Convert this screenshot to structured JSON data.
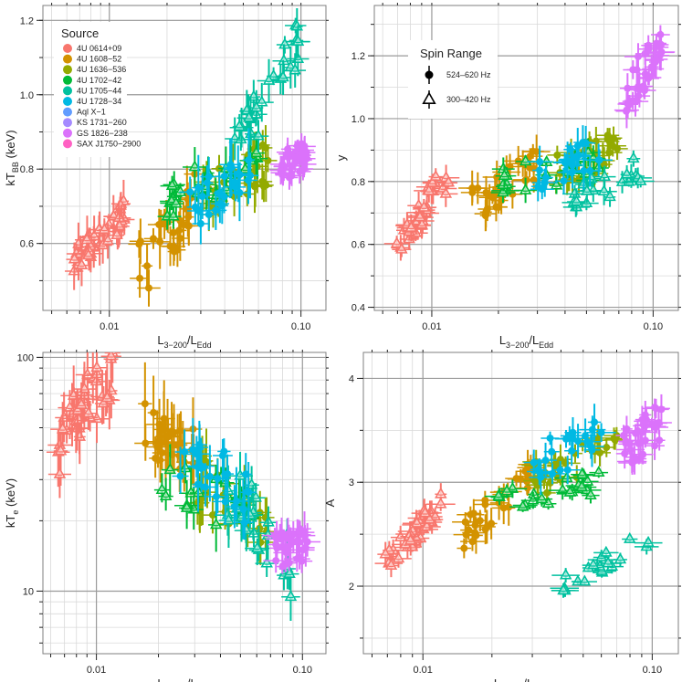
{
  "sources": [
    {
      "name": "4U 0614+09",
      "color": "#F8766D"
    },
    {
      "name": "4U 1608−52",
      "color": "#D39200"
    },
    {
      "name": "4U 1636−536",
      "color": "#93AA00"
    },
    {
      "name": "4U 1702−42",
      "color": "#00BA38"
    },
    {
      "name": "4U 1705−44",
      "color": "#00C19F"
    },
    {
      "name": "4U 1728−34",
      "color": "#00B9E3"
    },
    {
      "name": "Aql X−1",
      "color": "#619CFF"
    },
    {
      "name": "KS 1731−260",
      "color": "#A58AFF"
    },
    {
      "name": "GS 1826−238",
      "color": "#DB72FB"
    },
    {
      "name": "SAX J1750−2900",
      "color": "#FF61C3"
    }
  ],
  "legend_source_title": "Source",
  "legend_spin_title": "Spin Range",
  "spin_ranges": [
    {
      "label": "524–620 Hz",
      "marker": "circle"
    },
    {
      "label": "300–420 Hz",
      "marker": "triangle"
    }
  ],
  "chart_data": [
    {
      "type": "scatter",
      "id": "kTbb",
      "xlabel_main": "L",
      "xlabel_sub1": "3−200",
      "xlabel_mid": "/L",
      "xlabel_sub2": "Edd",
      "ylabel_main": "kT",
      "ylabel_sub": "BB",
      "ylabel_suffix": " (keV)",
      "xscale": "log",
      "xlim": [
        0.0045,
        0.135
      ],
      "ylim": [
        0.42,
        1.24
      ],
      "xticks": [
        0.01,
        0.1
      ],
      "xticklabels": [
        "0.01",
        "0.10"
      ],
      "yticks": [
        0.6,
        0.8,
        1.0,
        1.2
      ],
      "yticklabels": [
        "0.6",
        "0.8",
        "1.0",
        "1.2"
      ],
      "series": [
        {
          "source": 0,
          "marker": "triangle",
          "x_range": [
            0.0065,
            0.012
          ],
          "y_start": 0.56,
          "y_end": 0.68,
          "spread": 0.04,
          "err": 0.04,
          "n": 42
        },
        {
          "source": 1,
          "marker": "circle",
          "x_range": [
            0.014,
            0.028
          ],
          "y_start": 0.52,
          "y_end": 0.72,
          "spread": 0.08,
          "err": 0.05,
          "n": 30
        },
        {
          "source": 2,
          "marker": "circle",
          "x_range": [
            0.03,
            0.07
          ],
          "y_start": 0.72,
          "y_end": 0.82,
          "spread": 0.06,
          "err": 0.05,
          "n": 32
        },
        {
          "source": 3,
          "marker": "triangle",
          "x_range": [
            0.02,
            0.06
          ],
          "y_start": 0.72,
          "y_end": 0.82,
          "spread": 0.06,
          "err": 0.04,
          "n": 24
        },
        {
          "source": 4,
          "marker": "triangle",
          "x_range": [
            0.045,
            0.1
          ],
          "y_start": 0.85,
          "y_end": 1.15,
          "spread": 0.07,
          "err": 0.04,
          "n": 28
        },
        {
          "source": 5,
          "marker": "circle",
          "x_range": [
            0.025,
            0.055
          ],
          "y_start": 0.68,
          "y_end": 0.82,
          "spread": 0.06,
          "err": 0.06,
          "n": 26
        },
        {
          "source": 8,
          "marker": "circle",
          "x_range": [
            0.075,
            0.108
          ],
          "y_start": 0.8,
          "y_end": 0.84,
          "spread": 0.04,
          "err": 0.03,
          "n": 36
        }
      ]
    },
    {
      "type": "scatter",
      "id": "y",
      "xlabel_main": "L",
      "xlabel_sub1": "3−200",
      "xlabel_mid": "/L",
      "xlabel_sub2": "Edd",
      "ylabel_main": "y",
      "ylabel_sub": "",
      "ylabel_suffix": "",
      "xscale": "log",
      "xlim": [
        0.0055,
        0.13
      ],
      "ylim": [
        0.39,
        1.36
      ],
      "xticks": [
        0.01,
        0.1
      ],
      "xticklabels": [
        "0.01",
        "0.10"
      ],
      "yticks": [
        0.4,
        0.6,
        0.8,
        1.0,
        1.2
      ],
      "yticklabels": [
        "0.4",
        "0.6",
        "0.8",
        "1.0",
        "1.2"
      ],
      "series": [
        {
          "source": 0,
          "marker": "triangle",
          "x_range": [
            0.0068,
            0.012
          ],
          "y_start": 0.6,
          "y_end": 0.82,
          "spread": 0.05,
          "err": 0.03,
          "n": 40
        },
        {
          "source": 1,
          "marker": "circle",
          "x_range": [
            0.015,
            0.03
          ],
          "y_start": 0.72,
          "y_end": 0.85,
          "spread": 0.06,
          "err": 0.04,
          "n": 30
        },
        {
          "source": 2,
          "marker": "circle",
          "x_range": [
            0.035,
            0.07
          ],
          "y_start": 0.84,
          "y_end": 0.9,
          "spread": 0.06,
          "err": 0.04,
          "n": 28
        },
        {
          "source": 3,
          "marker": "triangle",
          "x_range": [
            0.02,
            0.06
          ],
          "y_start": 0.8,
          "y_end": 0.86,
          "spread": 0.05,
          "err": 0.03,
          "n": 22
        },
        {
          "source": 4,
          "marker": "triangle",
          "x_range": [
            0.04,
            0.09
          ],
          "y_start": 0.74,
          "y_end": 0.84,
          "spread": 0.05,
          "err": 0.03,
          "n": 22
        },
        {
          "source": 5,
          "marker": "circle",
          "x_range": [
            0.03,
            0.06
          ],
          "y_start": 0.82,
          "y_end": 0.9,
          "spread": 0.05,
          "err": 0.04,
          "n": 24
        },
        {
          "source": 8,
          "marker": "circle",
          "x_range": [
            0.075,
            0.11
          ],
          "y_start": 1.08,
          "y_end": 1.22,
          "spread": 0.07,
          "err": 0.04,
          "n": 36
        }
      ]
    },
    {
      "type": "scatter",
      "id": "kTe",
      "xlabel_main": "L",
      "xlabel_sub1": "3−200",
      "xlabel_mid": "/L",
      "xlabel_sub2": "Edd",
      "ylabel_main": "kT",
      "ylabel_sub": "e",
      "ylabel_suffix": " (keV)",
      "xscale": "log",
      "xlim": [
        0.0055,
        0.13
      ],
      "yscale": "log",
      "ylim": [
        5.4,
        105
      ],
      "xticks": [
        0.01,
        0.1
      ],
      "xticklabels": [
        "0.01",
        "0.10"
      ],
      "yticks": [
        10,
        100
      ],
      "yticklabels": [
        "10",
        "100"
      ],
      "series": [
        {
          "source": 0,
          "marker": "triangle",
          "x_range": [
            0.0065,
            0.012
          ],
          "y_start": 40,
          "y_end": 85,
          "spread": 0.12,
          "err": 0.1,
          "n": 40
        },
        {
          "source": 1,
          "marker": "circle",
          "x_range": [
            0.017,
            0.03
          ],
          "y_start": 50,
          "y_end": 40,
          "spread": 0.12,
          "err": 0.12,
          "n": 30
        },
        {
          "source": 2,
          "marker": "circle",
          "x_range": [
            0.03,
            0.07
          ],
          "y_start": 30,
          "y_end": 16,
          "spread": 0.12,
          "err": 0.1,
          "n": 28
        },
        {
          "source": 3,
          "marker": "triangle",
          "x_range": [
            0.02,
            0.06
          ],
          "y_start": 28,
          "y_end": 22,
          "spread": 0.12,
          "err": 0.08,
          "n": 22
        },
        {
          "source": 4,
          "marker": "triangle",
          "x_range": [
            0.04,
            0.09
          ],
          "y_start": 30,
          "y_end": 12,
          "spread": 0.15,
          "err": 0.08,
          "n": 22
        },
        {
          "source": 5,
          "marker": "circle",
          "x_range": [
            0.025,
            0.055
          ],
          "y_start": 40,
          "y_end": 25,
          "spread": 0.12,
          "err": 0.1,
          "n": 24
        },
        {
          "source": 8,
          "marker": "circle",
          "x_range": [
            0.072,
            0.11
          ],
          "y_start": 15,
          "y_end": 16,
          "spread": 0.08,
          "err": 0.06,
          "n": 34
        }
      ]
    },
    {
      "type": "scatter",
      "id": "A",
      "xlabel_main": "L",
      "xlabel_sub1": "3−200",
      "xlabel_mid": "/L",
      "xlabel_sub2": "Edd",
      "ylabel_main": "A",
      "ylabel_sub": "",
      "ylabel_suffix": "",
      "xscale": "log",
      "xlim": [
        0.0055,
        0.13
      ],
      "ylim": [
        1.35,
        4.25
      ],
      "xticks": [
        0.01,
        0.1
      ],
      "xticklabels": [
        "0.01",
        "0.10"
      ],
      "yticks": [
        2,
        3,
        4
      ],
      "yticklabels": [
        "2",
        "3",
        "4"
      ],
      "series": [
        {
          "source": 0,
          "marker": "triangle",
          "x_range": [
            0.0068,
            0.012
          ],
          "y_start": 2.2,
          "y_end": 2.8,
          "spread": 0.12,
          "err": 0.08,
          "n": 40
        },
        {
          "source": 1,
          "marker": "circle",
          "x_range": [
            0.015,
            0.03
          ],
          "y_start": 2.5,
          "y_end": 3.1,
          "spread": 0.15,
          "err": 0.12,
          "n": 30
        },
        {
          "source": 2,
          "marker": "circle",
          "x_range": [
            0.03,
            0.07
          ],
          "y_start": 3.0,
          "y_end": 3.3,
          "spread": 0.2,
          "err": 0.1,
          "n": 28
        },
        {
          "source": 3,
          "marker": "triangle",
          "x_range": [
            0.02,
            0.06
          ],
          "y_start": 2.8,
          "y_end": 3.0,
          "spread": 0.12,
          "err": 0.06,
          "n": 22
        },
        {
          "source": 4,
          "marker": "triangle",
          "x_range": [
            0.04,
            0.1
          ],
          "y_start": 2.0,
          "y_end": 2.5,
          "spread": 0.12,
          "err": 0.05,
          "n": 20
        },
        {
          "source": 5,
          "marker": "circle",
          "x_range": [
            0.03,
            0.06
          ],
          "y_start": 3.2,
          "y_end": 3.4,
          "spread": 0.2,
          "err": 0.12,
          "n": 24
        },
        {
          "source": 8,
          "marker": "circle",
          "x_range": [
            0.075,
            0.11
          ],
          "y_start": 3.3,
          "y_end": 3.6,
          "spread": 0.2,
          "err": 0.1,
          "n": 36
        }
      ]
    }
  ]
}
